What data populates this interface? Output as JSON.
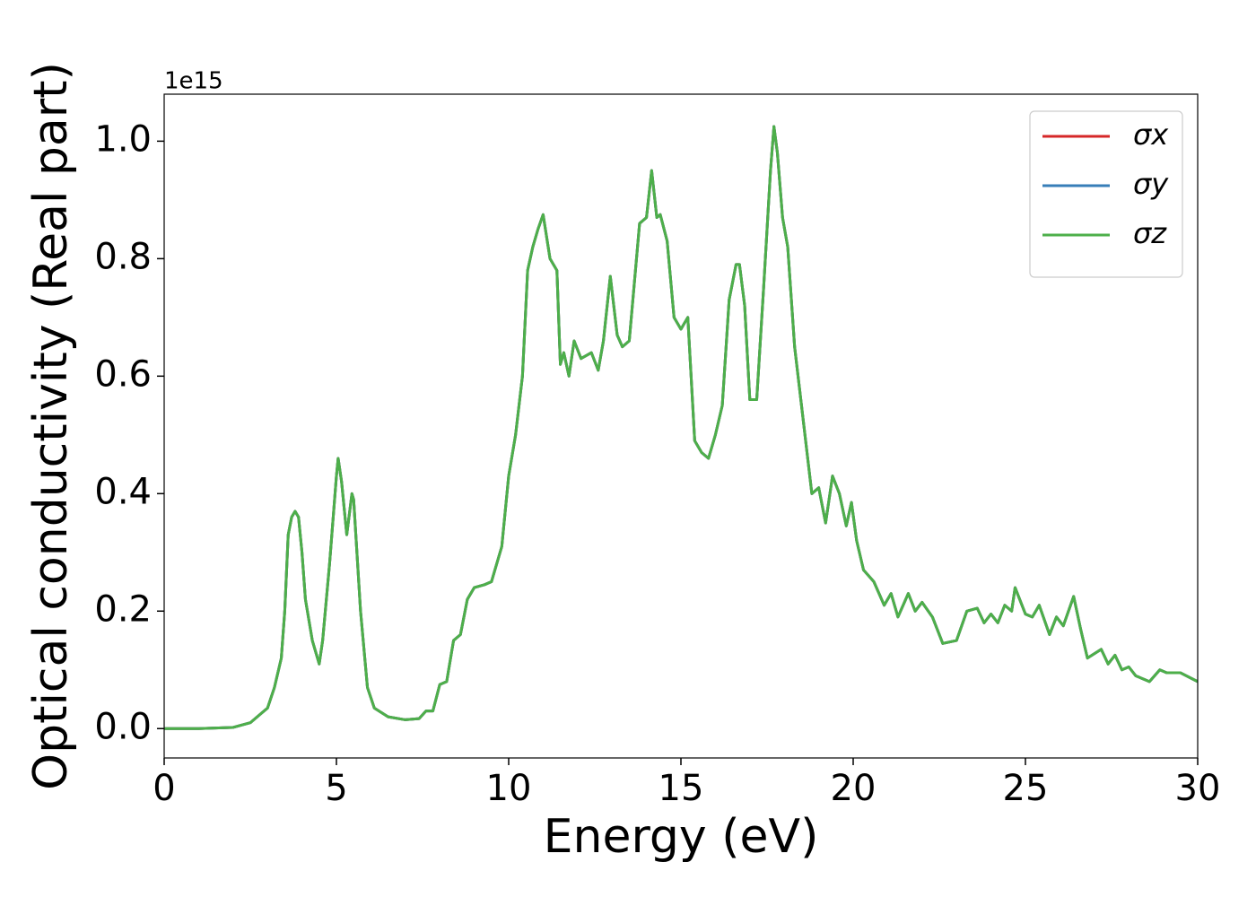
{
  "chart_data": {
    "type": "line",
    "offset_label": "1e15",
    "xlabel": "Energy (eV)",
    "ylabel": "Optical conductivity (Real part)",
    "x": [
      0,
      1,
      2,
      2.5,
      2.8,
      3.0,
      3.2,
      3.4,
      3.5,
      3.6,
      3.7,
      3.8,
      3.9,
      4.0,
      4.1,
      4.3,
      4.5,
      4.6,
      4.8,
      5.0,
      5.05,
      5.15,
      5.3,
      5.45,
      5.5,
      5.7,
      5.9,
      6.1,
      6.5,
      7.0,
      7.4,
      7.6,
      7.8,
      8.0,
      8.2,
      8.4,
      8.6,
      8.8,
      9.0,
      9.3,
      9.5,
      9.8,
      10.0,
      10.2,
      10.4,
      10.55,
      10.7,
      10.85,
      11.0,
      11.2,
      11.4,
      11.5,
      11.6,
      11.75,
      11.9,
      12.1,
      12.4,
      12.6,
      12.75,
      12.95,
      13.15,
      13.3,
      13.5,
      13.8,
      14.0,
      14.15,
      14.3,
      14.4,
      14.6,
      14.8,
      15.0,
      15.2,
      15.4,
      15.6,
      15.8,
      16.0,
      16.2,
      16.4,
      16.6,
      16.7,
      16.85,
      17.0,
      17.2,
      17.4,
      17.6,
      17.7,
      17.8,
      17.95,
      18.1,
      18.3,
      18.6,
      18.8,
      19.0,
      19.2,
      19.4,
      19.6,
      19.8,
      19.95,
      20.1,
      20.3,
      20.6,
      20.9,
      21.1,
      21.3,
      21.6,
      21.8,
      22.0,
      22.3,
      22.6,
      23.0,
      23.3,
      23.6,
      23.8,
      24.0,
      24.2,
      24.4,
      24.6,
      24.7,
      25.0,
      25.2,
      25.4,
      25.7,
      25.9,
      26.1,
      26.4,
      26.6,
      26.8,
      27.2,
      27.4,
      27.6,
      27.8,
      28.0,
      28.2,
      28.6,
      28.9,
      29.1,
      29.5,
      30
    ],
    "series": [
      {
        "name": "σx",
        "color": "#d62728",
        "values": [
          0,
          0,
          0.002,
          0.01,
          0.025,
          0.035,
          0.07,
          0.12,
          0.2,
          0.33,
          0.36,
          0.37,
          0.36,
          0.3,
          0.22,
          0.15,
          0.11,
          0.15,
          0.28,
          0.43,
          0.46,
          0.42,
          0.33,
          0.4,
          0.39,
          0.2,
          0.07,
          0.035,
          0.02,
          0.015,
          0.017,
          0.03,
          0.03,
          0.075,
          0.08,
          0.15,
          0.16,
          0.22,
          0.24,
          0.245,
          0.25,
          0.31,
          0.43,
          0.5,
          0.6,
          0.78,
          0.82,
          0.85,
          0.875,
          0.8,
          0.78,
          0.62,
          0.64,
          0.6,
          0.66,
          0.63,
          0.64,
          0.61,
          0.66,
          0.77,
          0.67,
          0.65,
          0.66,
          0.86,
          0.87,
          0.95,
          0.87,
          0.875,
          0.83,
          0.7,
          0.68,
          0.7,
          0.49,
          0.47,
          0.46,
          0.5,
          0.55,
          0.73,
          0.79,
          0.79,
          0.72,
          0.56,
          0.56,
          0.75,
          0.95,
          1.025,
          0.98,
          0.87,
          0.82,
          0.65,
          0.5,
          0.4,
          0.41,
          0.35,
          0.43,
          0.4,
          0.345,
          0.385,
          0.32,
          0.27,
          0.25,
          0.21,
          0.23,
          0.19,
          0.23,
          0.2,
          0.215,
          0.19,
          0.145,
          0.15,
          0.2,
          0.205,
          0.18,
          0.195,
          0.18,
          0.21,
          0.2,
          0.24,
          0.195,
          0.19,
          0.21,
          0.16,
          0.19,
          0.175,
          0.225,
          0.17,
          0.12,
          0.135,
          0.11,
          0.125,
          0.1,
          0.105,
          0.09,
          0.08,
          0.1,
          0.095,
          0.095,
          0.08
        ]
      },
      {
        "name": "σy",
        "color": "#377eb8",
        "values": [
          0,
          0,
          0.002,
          0.01,
          0.025,
          0.035,
          0.07,
          0.12,
          0.2,
          0.33,
          0.36,
          0.37,
          0.36,
          0.3,
          0.22,
          0.15,
          0.11,
          0.15,
          0.28,
          0.43,
          0.46,
          0.42,
          0.33,
          0.4,
          0.39,
          0.2,
          0.07,
          0.035,
          0.02,
          0.015,
          0.017,
          0.03,
          0.03,
          0.075,
          0.08,
          0.15,
          0.16,
          0.22,
          0.24,
          0.245,
          0.25,
          0.31,
          0.43,
          0.5,
          0.6,
          0.78,
          0.82,
          0.85,
          0.875,
          0.8,
          0.78,
          0.62,
          0.64,
          0.6,
          0.66,
          0.63,
          0.64,
          0.61,
          0.66,
          0.77,
          0.67,
          0.65,
          0.66,
          0.86,
          0.87,
          0.95,
          0.87,
          0.875,
          0.83,
          0.7,
          0.68,
          0.7,
          0.49,
          0.47,
          0.46,
          0.5,
          0.55,
          0.73,
          0.79,
          0.79,
          0.72,
          0.56,
          0.56,
          0.75,
          0.95,
          1.025,
          0.98,
          0.87,
          0.82,
          0.65,
          0.5,
          0.4,
          0.41,
          0.35,
          0.43,
          0.4,
          0.345,
          0.385,
          0.32,
          0.27,
          0.25,
          0.21,
          0.23,
          0.19,
          0.23,
          0.2,
          0.215,
          0.19,
          0.145,
          0.15,
          0.2,
          0.205,
          0.18,
          0.195,
          0.18,
          0.21,
          0.2,
          0.24,
          0.195,
          0.19,
          0.21,
          0.16,
          0.19,
          0.175,
          0.225,
          0.17,
          0.12,
          0.135,
          0.11,
          0.125,
          0.1,
          0.105,
          0.09,
          0.08,
          0.1,
          0.095,
          0.095,
          0.08
        ]
      },
      {
        "name": "σz",
        "color": "#4daf4a",
        "values": [
          0,
          0,
          0.002,
          0.01,
          0.025,
          0.035,
          0.07,
          0.12,
          0.2,
          0.33,
          0.36,
          0.37,
          0.36,
          0.3,
          0.22,
          0.15,
          0.11,
          0.15,
          0.28,
          0.43,
          0.46,
          0.42,
          0.33,
          0.4,
          0.39,
          0.2,
          0.07,
          0.035,
          0.02,
          0.015,
          0.017,
          0.03,
          0.03,
          0.075,
          0.08,
          0.15,
          0.16,
          0.22,
          0.24,
          0.245,
          0.25,
          0.31,
          0.43,
          0.5,
          0.6,
          0.78,
          0.82,
          0.85,
          0.875,
          0.8,
          0.78,
          0.62,
          0.64,
          0.6,
          0.66,
          0.63,
          0.64,
          0.61,
          0.66,
          0.77,
          0.67,
          0.65,
          0.66,
          0.86,
          0.87,
          0.95,
          0.87,
          0.875,
          0.83,
          0.7,
          0.68,
          0.7,
          0.49,
          0.47,
          0.46,
          0.5,
          0.55,
          0.73,
          0.79,
          0.79,
          0.72,
          0.56,
          0.56,
          0.75,
          0.95,
          1.025,
          0.98,
          0.87,
          0.82,
          0.65,
          0.5,
          0.4,
          0.41,
          0.35,
          0.43,
          0.4,
          0.345,
          0.385,
          0.32,
          0.27,
          0.25,
          0.21,
          0.23,
          0.19,
          0.23,
          0.2,
          0.215,
          0.19,
          0.145,
          0.15,
          0.2,
          0.205,
          0.18,
          0.195,
          0.18,
          0.21,
          0.2,
          0.24,
          0.195,
          0.19,
          0.21,
          0.16,
          0.19,
          0.175,
          0.225,
          0.17,
          0.12,
          0.135,
          0.11,
          0.125,
          0.1,
          0.105,
          0.09,
          0.08,
          0.1,
          0.095,
          0.095,
          0.08
        ]
      }
    ],
    "xlim": [
      0,
      30
    ],
    "xticks": [
      0,
      5,
      10,
      15,
      20,
      25,
      30
    ],
    "ylim": [
      -0.05,
      1.08
    ],
    "yticks": [
      {
        "value": 0,
        "label": "0.0"
      },
      0.2,
      0.4,
      0.6,
      0.8,
      {
        "value": 1,
        "label": "1.0"
      }
    ],
    "grid": false,
    "legend": "upper right"
  }
}
